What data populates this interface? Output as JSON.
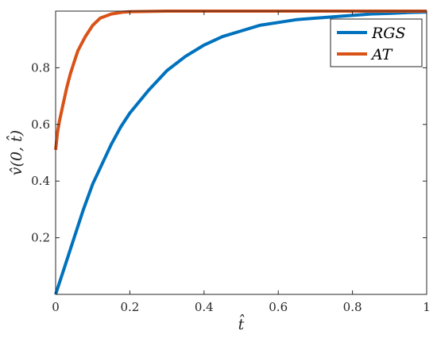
{
  "chart_data": {
    "type": "line",
    "xlabel": "t̂",
    "ylabel": "v̂(0, t̂)",
    "xlim": [
      0,
      1
    ],
    "ylim": [
      0,
      1
    ],
    "x_ticks": [
      "0",
      "0.2",
      "0.4",
      "0.6",
      "0.8",
      "1"
    ],
    "y_ticks": [
      "0.2",
      "0.4",
      "0.6",
      "0.8"
    ],
    "grid": false,
    "legend_position": "top-right",
    "series": [
      {
        "name": "RGS",
        "color": "#0072BD",
        "x": [
          0,
          0.025,
          0.05,
          0.075,
          0.1,
          0.125,
          0.15,
          0.175,
          0.2,
          0.25,
          0.3,
          0.35,
          0.4,
          0.45,
          0.5,
          0.55,
          0.6,
          0.65,
          0.7,
          0.75,
          0.8,
          0.85,
          0.9,
          0.95,
          1.0
        ],
        "y": [
          0.0,
          0.1,
          0.2,
          0.3,
          0.39,
          0.46,
          0.53,
          0.59,
          0.64,
          0.72,
          0.79,
          0.84,
          0.88,
          0.91,
          0.93,
          0.95,
          0.96,
          0.97,
          0.975,
          0.98,
          0.985,
          0.99,
          0.992,
          0.995,
          0.997
        ]
      },
      {
        "name": "AT",
        "color": "#D95319",
        "x": [
          0,
          0.005,
          0.01,
          0.02,
          0.03,
          0.04,
          0.05,
          0.06,
          0.08,
          0.1,
          0.12,
          0.15,
          0.18,
          0.2,
          0.25,
          0.3,
          0.4,
          0.5,
          0.6,
          0.7,
          0.8,
          0.9,
          1.0
        ],
        "y": [
          0.51,
          0.57,
          0.61,
          0.67,
          0.73,
          0.78,
          0.82,
          0.86,
          0.91,
          0.95,
          0.975,
          0.99,
          0.996,
          0.998,
          0.999,
          1.0,
          1.0,
          1.0,
          1.0,
          1.0,
          1.0,
          1.0,
          1.0
        ]
      }
    ]
  }
}
